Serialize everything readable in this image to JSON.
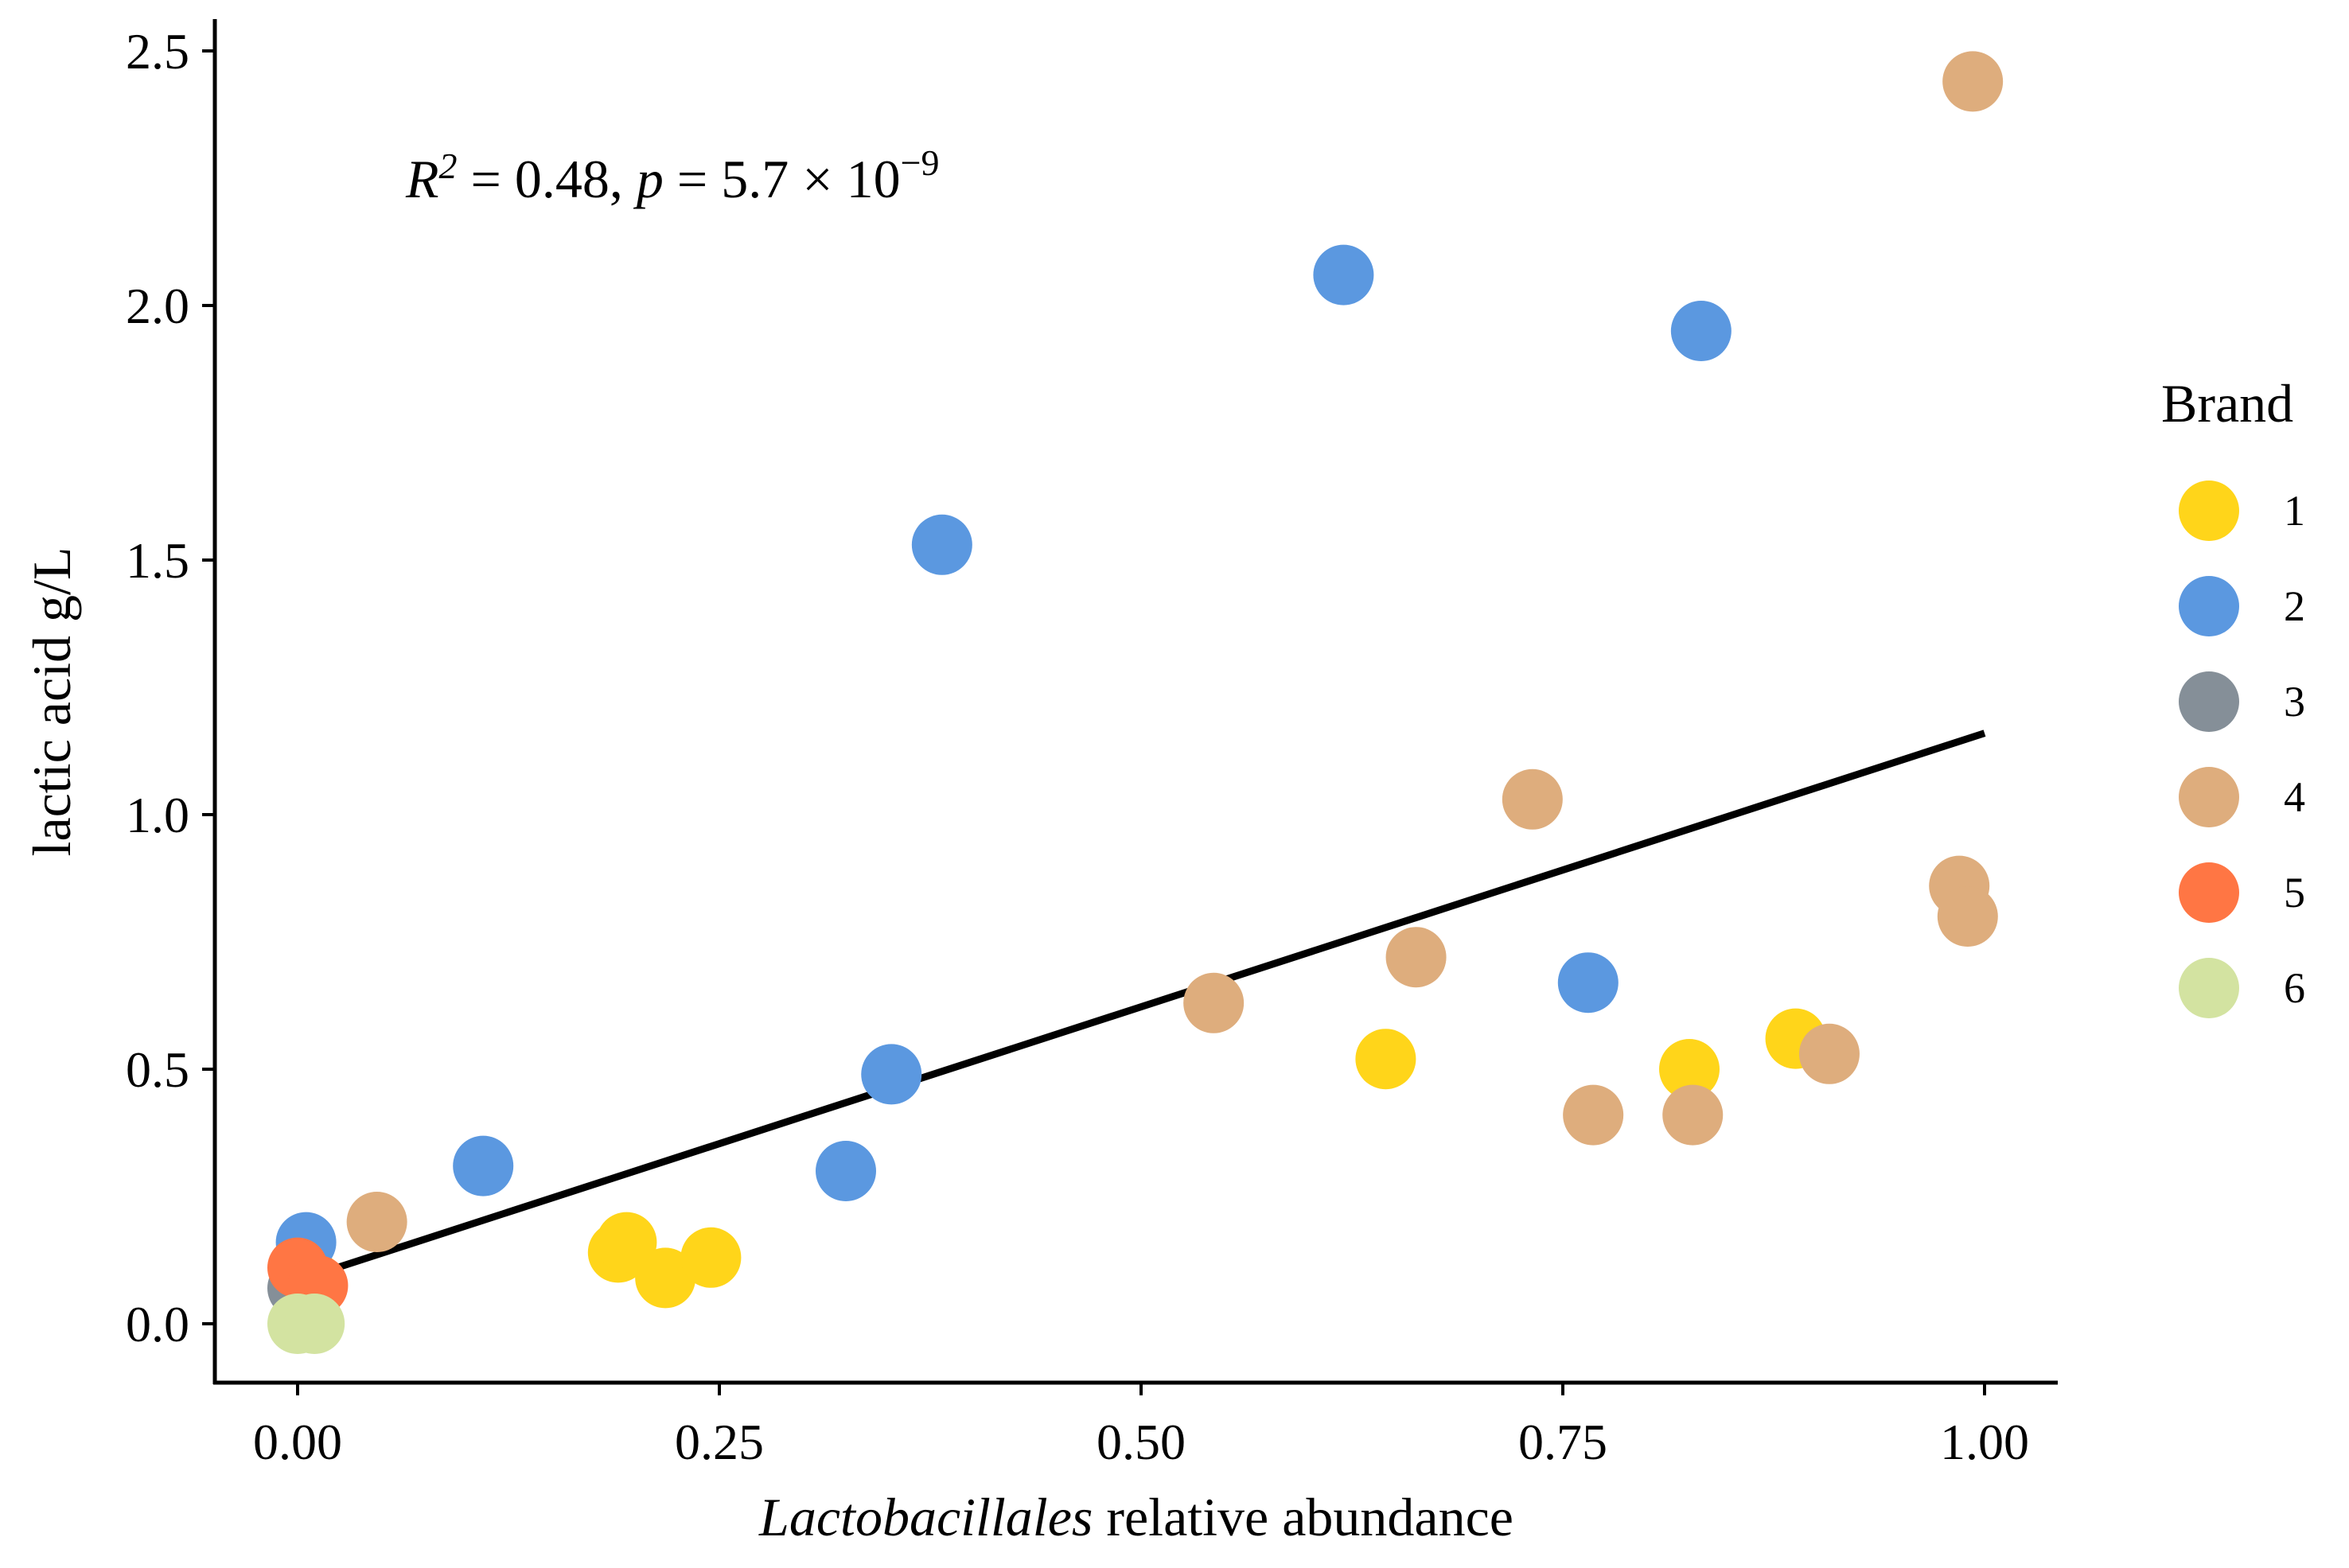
{
  "chart_data": {
    "type": "scatter",
    "title": "",
    "xlabel_italic": "Lactobacillales",
    "xlabel_rest": " relative abundance",
    "ylabel": "lactic acid g/L",
    "xlim": [
      -0.05,
      1.05
    ],
    "ylim": [
      -0.12,
      2.57
    ],
    "x_ticks": [
      0,
      0.25,
      0.5,
      0.75,
      1.0
    ],
    "x_tick_labels": [
      "0.00",
      "0.25",
      "0.50",
      "0.75",
      "1.00"
    ],
    "y_ticks": [
      0,
      0.5,
      1.0,
      1.5,
      2.0,
      2.5
    ],
    "y_tick_labels": [
      "0.0",
      "0.5",
      "1.0",
      "1.5",
      "2.0",
      "2.5"
    ],
    "grid": false,
    "annotation": {
      "r_label": "R",
      "r_sup": "2",
      "r_value": " = 0.48, ",
      "p_label": "p",
      "p_value": " = 5.7 × 10",
      "p_exp": "−9"
    },
    "regression": {
      "x": [
        0,
        1.0
      ],
      "y": [
        0.085,
        1.16
      ]
    },
    "legend": {
      "title": "Brand",
      "position": "right",
      "entries": [
        {
          "label": "1",
          "color": "#FFD51A"
        },
        {
          "label": "2",
          "color": "#5B98E0"
        },
        {
          "label": "3",
          "color": "#858F98"
        },
        {
          "label": "4",
          "color": "#DEAD7D"
        },
        {
          "label": "5",
          "color": "#FF7644"
        },
        {
          "label": "6",
          "color": "#D3E3A1"
        }
      ]
    },
    "series": [
      {
        "name": "1",
        "color": "#FFD51A",
        "points": [
          [
            0.19,
            0.14
          ],
          [
            0.195,
            0.16
          ],
          [
            0.218,
            0.09
          ],
          [
            0.245,
            0.13
          ],
          [
            0.645,
            0.52
          ],
          [
            0.825,
            0.5
          ],
          [
            0.888,
            0.56
          ],
          [
            0.01,
            0.08
          ]
        ]
      },
      {
        "name": "2",
        "color": "#5B98E0",
        "points": [
          [
            0.005,
            0.16
          ],
          [
            0.11,
            0.31
          ],
          [
            0.325,
            0.3
          ],
          [
            0.352,
            0.49
          ],
          [
            0.382,
            1.53
          ],
          [
            0.62,
            2.06
          ],
          [
            0.765,
            0.67
          ],
          [
            0.832,
            1.95
          ]
        ]
      },
      {
        "name": "3",
        "color": "#858F98",
        "points": [
          [
            0.005,
            0.08
          ],
          [
            0.0,
            0.07
          ]
        ]
      },
      {
        "name": "4",
        "color": "#DEAD7D",
        "points": [
          [
            0.047,
            0.2
          ],
          [
            0.543,
            0.63
          ],
          [
            0.663,
            0.72
          ],
          [
            0.732,
            1.03
          ],
          [
            0.768,
            0.41
          ],
          [
            0.827,
            0.41
          ],
          [
            0.908,
            0.53
          ],
          [
            0.985,
            0.86
          ],
          [
            0.99,
            0.8
          ],
          [
            0.993,
            2.44
          ]
        ]
      },
      {
        "name": "5",
        "color": "#FF7644",
        "points": [
          [
            0.0,
            0.11
          ],
          [
            0.012,
            0.075
          ]
        ]
      },
      {
        "name": "6",
        "color": "#D3E3A1",
        "points": [
          [
            0.0,
            0.0
          ],
          [
            0.01,
            0.0
          ]
        ]
      }
    ]
  }
}
